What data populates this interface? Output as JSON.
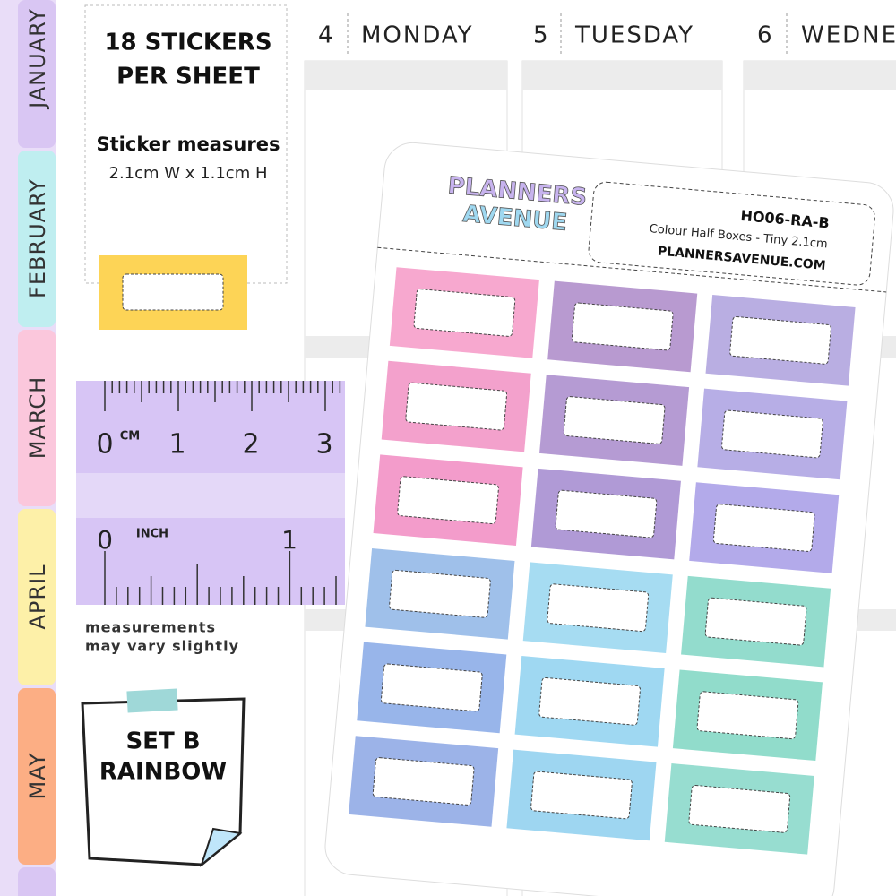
{
  "tabs": [
    "JANUARY",
    "FEBRUARY",
    "MARCH",
    "APRIL",
    "MAY"
  ],
  "days": [
    {
      "number": "4",
      "name": "MONDAY"
    },
    {
      "number": "5",
      "name": "TUESDAY"
    },
    {
      "number": "6",
      "name": "WEDNE"
    }
  ],
  "info": {
    "title_lines": [
      "18 STICKERS",
      "PER SHEET"
    ],
    "measures_label": "Sticker measures",
    "measures": "2.1cm W  x  1.1cm H"
  },
  "ruler": {
    "cm_zero": "0",
    "cm_unit": "CM",
    "cm_labels": [
      "1",
      "2",
      "3"
    ],
    "inch_zero": "0",
    "inch_unit": "INCH",
    "inch_labels": [
      "1"
    ]
  },
  "note": [
    "measurements",
    "may vary slightly"
  ],
  "tag": [
    "SET B",
    "RAINBOW"
  ],
  "sheet": {
    "brand": [
      "PLANNERS",
      "AVENUE"
    ],
    "code": "HO06-RA-B",
    "description": "Colour Half Boxes - Tiny 2.1cm",
    "website": "PLANNERSAVENUE.COM"
  }
}
